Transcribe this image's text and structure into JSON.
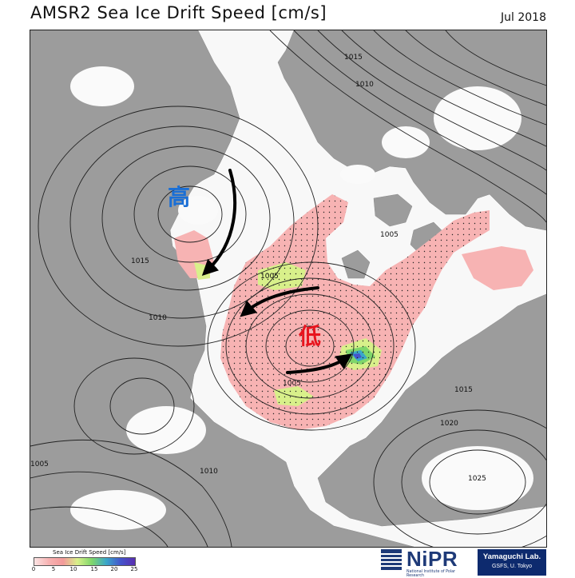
{
  "header": {
    "title": "AMSR2 Sea Ice Drift Speed [cm/s]",
    "date": "Jul 2018"
  },
  "map": {
    "high_marker": "高",
    "low_marker": "低",
    "high_color": "#1a6fd6",
    "low_color": "#e8141e",
    "land_color": "#9c9c9c",
    "ice_color": "#f7b3b3",
    "isobar_labels": [
      "1015",
      "1010",
      "1015",
      "1005",
      "1010",
      "1005",
      "1005",
      "1015",
      "1020",
      "1005",
      "1010",
      "1025"
    ]
  },
  "colorbar": {
    "title": "Sea Ice Drift Speed [cm/s]",
    "ticks": [
      "0",
      "5",
      "10",
      "15",
      "20",
      "25"
    ],
    "colors": [
      "#fbe3e3",
      "#f7b3b3",
      "#f39a9a",
      "#d8f08a",
      "#7fd66a",
      "#3aa7c9",
      "#4455cc",
      "#5a2fb0"
    ]
  },
  "logos": {
    "nipr_name": "NiPR",
    "nipr_sub": "National Institute of Polar Research",
    "lab_name": "Yamaguchi Lab.",
    "lab_sub": "GSFS, U. Tokyo"
  }
}
